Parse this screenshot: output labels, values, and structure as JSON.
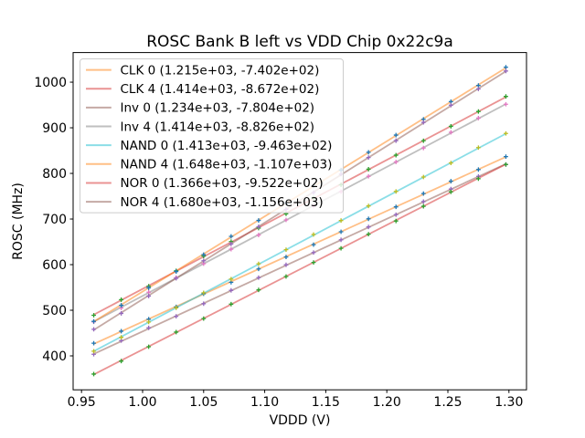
{
  "chart_data": {
    "type": "scatter",
    "title": "ROSC Bank B left vs VDD Chip 0x22c9a",
    "xlabel": "VDDD (V)",
    "ylabel": "ROSC (MHz)",
    "xlim": [
      0.943125,
      1.314375
    ],
    "ylim": [
      325.6,
      1064.9
    ],
    "xticks": [
      0.95,
      1.0,
      1.05,
      1.1,
      1.15,
      1.2,
      1.25,
      1.3
    ],
    "xtick_labels": [
      "0.95",
      "1.00",
      "1.05",
      "1.10",
      "1.15",
      "1.20",
      "1.25",
      "1.30"
    ],
    "yticks": [
      400,
      500,
      600,
      700,
      800,
      900,
      1000
    ],
    "ytick_labels": [
      "400",
      "500",
      "600",
      "700",
      "800",
      "900",
      "1000"
    ],
    "grid": false,
    "legend_position": "upper left",
    "x_points": {
      "start": 0.96,
      "step": 0.0225,
      "count": 16
    },
    "line_alpha": 0.5,
    "marker_style": "plus",
    "series": [
      {
        "name": "CLK 0",
        "legend_label": "CLK 0 (1.215e+03, -7.402e+02)",
        "slope": 1215.0,
        "intercept": -740.2,
        "line_color": "#ff7f0e",
        "marker_color": "#1f77b4"
      },
      {
        "name": "CLK 4",
        "legend_label": "CLK 4 (1.414e+03, -8.672e+02)",
        "slope": 1414.0,
        "intercept": -867.2,
        "line_color": "#d62728",
        "marker_color": "#2ca02c"
      },
      {
        "name": "Inv 0",
        "legend_label": "Inv 0 (1.234e+03, -7.804e+02)",
        "slope": 1234.0,
        "intercept": -780.4,
        "line_color": "#8c564b",
        "marker_color": "#9467bd"
      },
      {
        "name": "Inv 4",
        "legend_label": "Inv 4 (1.414e+03, -8.826e+02)",
        "slope": 1414.0,
        "intercept": -882.6,
        "line_color": "#7f7f7f",
        "marker_color": "#e377c2"
      },
      {
        "name": "NAND 0",
        "legend_label": "NAND 0 (1.413e+03, -9.463e+02)",
        "slope": 1413.0,
        "intercept": -946.3,
        "line_color": "#17becf",
        "marker_color": "#bcbd22"
      },
      {
        "name": "NAND 4",
        "legend_label": "NAND 4 (1.648e+03, -1.107e+03)",
        "slope": 1648.0,
        "intercept": -1107.0,
        "line_color": "#ff7f0e",
        "marker_color": "#1f77b4"
      },
      {
        "name": "NOR 0",
        "legend_label": "NOR 0 (1.366e+03, -9.522e+02)",
        "slope": 1366.0,
        "intercept": -952.2,
        "line_color": "#d62728",
        "marker_color": "#2ca02c"
      },
      {
        "name": "NOR 4",
        "legend_label": "NOR 4 (1.680e+03, -1.156e+03)",
        "slope": 1680.0,
        "intercept": -1156.0,
        "line_color": "#8c564b",
        "marker_color": "#9467bd"
      }
    ]
  }
}
